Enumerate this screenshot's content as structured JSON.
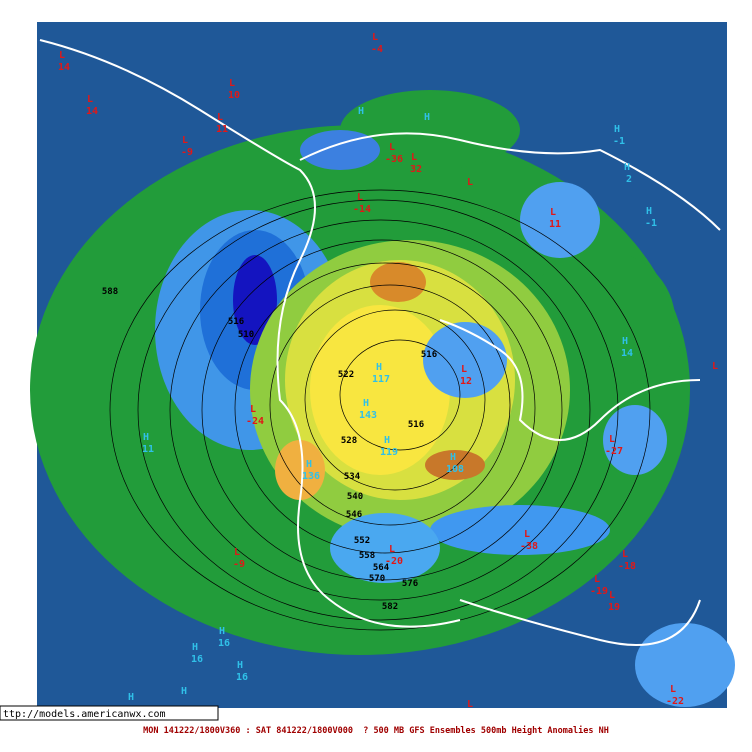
{
  "map": {
    "url": "ttp://models.americanwx.com",
    "footer": "MON 141222/1800V360 : SAT 841222/1800V000  ? 500 MB GFS Ensembles 500mb Height Anomalies NH",
    "lows": [
      {
        "symbol": "L",
        "value": 14
      },
      {
        "symbol": "L",
        "value": 14
      },
      {
        "symbol": "L",
        "value": 10
      },
      {
        "symbol": "L",
        "value": 11
      },
      {
        "symbol": "L",
        "value": -9
      },
      {
        "symbol": "L",
        "value": -4
      },
      {
        "symbol": "L",
        "value": -36
      },
      {
        "symbol": "L",
        "value": 32
      },
      {
        "symbol": "L"
      },
      {
        "symbol": "L",
        "value": -14
      },
      {
        "symbol": "L",
        "value": 11
      },
      {
        "symbol": "L",
        "value": -24
      },
      {
        "symbol": "L",
        "value": 12
      },
      {
        "symbol": "L",
        "value": -27
      },
      {
        "symbol": "L",
        "value": -38
      },
      {
        "symbol": "L",
        "value": -9
      },
      {
        "symbol": "L",
        "value": -20
      },
      {
        "symbol": "L",
        "value": -18
      },
      {
        "symbol": "L",
        "value": -19
      },
      {
        "symbol": "L",
        "value": 19
      },
      {
        "symbol": "L",
        "value": -22
      },
      {
        "symbol": "L"
      },
      {
        "symbol": "L"
      }
    ],
    "highs": [
      {
        "symbol": "H",
        "value": -1
      },
      {
        "symbol": "H",
        "value": 2
      },
      {
        "symbol": "H",
        "value": -1
      },
      {
        "symbol": "H",
        "value": 14
      },
      {
        "symbol": "H",
        "value": 11
      },
      {
        "symbol": "H",
        "value": 117
      },
      {
        "symbol": "H",
        "value": 143
      },
      {
        "symbol": "H",
        "value": 119
      },
      {
        "symbol": "H",
        "value": 108
      },
      {
        "symbol": "H",
        "value": 136
      },
      {
        "symbol": "H",
        "value": 16
      },
      {
        "symbol": "H",
        "value": 16
      },
      {
        "symbol": "H",
        "value": 16
      },
      {
        "symbol": "H"
      },
      {
        "symbol": "H"
      },
      {
        "symbol": "H"
      },
      {
        "symbol": "H"
      }
    ],
    "contours": [
      588,
      516,
      510,
      522,
      516,
      516,
      528,
      534,
      540,
      546,
      552,
      558,
      564,
      570,
      576,
      582
    ]
  }
}
